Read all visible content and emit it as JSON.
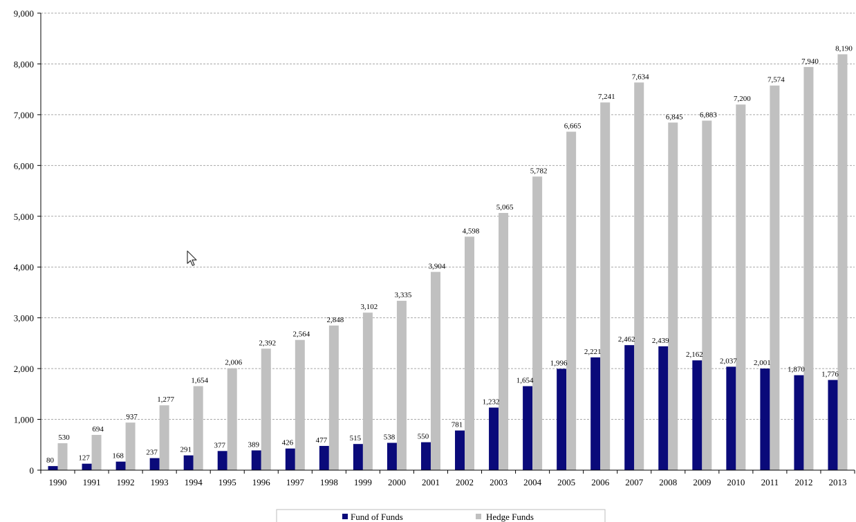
{
  "chart_data": {
    "type": "bar",
    "title": "",
    "xlabel": "",
    "ylabel": "",
    "ylim": [
      0,
      9000
    ],
    "yticks": [
      0,
      1000,
      2000,
      3000,
      4000,
      5000,
      6000,
      7000,
      8000,
      9000
    ],
    "ytick_labels": [
      "0",
      "1,000",
      "2,000",
      "3,000",
      "4,000",
      "5,000",
      "6,000",
      "7,000",
      "8,000",
      "9,000"
    ],
    "grid": true,
    "legend_position": "bottom",
    "categories": [
      "1990",
      "1991",
      "1992",
      "1993",
      "1994",
      "1995",
      "1996",
      "1997",
      "1998",
      "1999",
      "2000",
      "2001",
      "2002",
      "2003",
      "2004",
      "2005",
      "2006",
      "2007",
      "2008",
      "2009",
      "2010",
      "2011",
      "2012",
      "2013"
    ],
    "series": [
      {
        "name": "Fund of Funds",
        "color": "#0a0a7a",
        "values": [
          80,
          127,
          168,
          237,
          291,
          377,
          389,
          426,
          477,
          515,
          538,
          550,
          781,
          1232,
          1654,
          1996,
          2221,
          2462,
          2439,
          2162,
          2037,
          2001,
          1870,
          1776
        ],
        "labels": [
          "80",
          "127",
          "168",
          "237",
          "291",
          "377",
          "389",
          "426",
          "477",
          "515",
          "538",
          "550",
          "781",
          "1,232",
          "1,654",
          "1,996",
          "2,221",
          "2,462",
          "2,439",
          "2,162",
          "2,037",
          "2,001",
          "1,870",
          "1,776"
        ]
      },
      {
        "name": "Hedge Funds",
        "color": "#c0c0c0",
        "values": [
          530,
          694,
          937,
          1277,
          1654,
          2006,
          2392,
          2564,
          2848,
          3102,
          3335,
          3904,
          4598,
          5065,
          5782,
          6665,
          7241,
          7634,
          6845,
          6883,
          7200,
          7574,
          7940,
          8190
        ],
        "labels": [
          "530",
          "694",
          "937",
          "1,277",
          "1,654",
          "2,006",
          "2,392",
          "2,564",
          "2,848",
          "3,102",
          "3,335",
          "3,904",
          "4,598",
          "5,065",
          "5,782",
          "6,665",
          "7,241",
          "7,634",
          "6,845",
          "6,883",
          "7,200",
          "7,574",
          "7,940",
          "8,190"
        ]
      }
    ]
  },
  "icons": {
    "cursor": "mouse-pointer-icon"
  }
}
